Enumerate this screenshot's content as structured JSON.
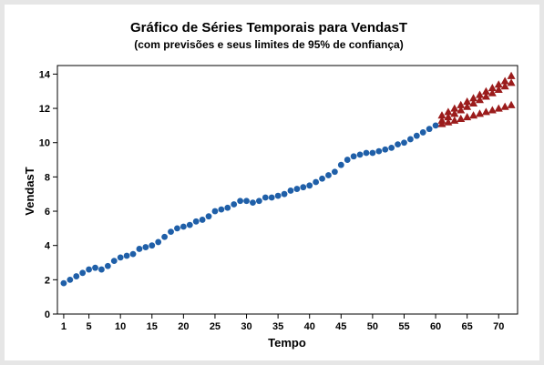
{
  "chart_data": {
    "type": "scatter",
    "title": "Gráfico de Séries Temporais para VendasT",
    "subtitle": "(com previsões e seus limites de 95% de confiança)",
    "xlabel": "Tempo",
    "ylabel": "VendasT",
    "xlim": [
      0,
      73
    ],
    "ylim": [
      0,
      14.5
    ],
    "x_ticks": [
      1,
      5,
      10,
      15,
      20,
      25,
      30,
      35,
      40,
      45,
      50,
      55,
      60,
      65,
      70
    ],
    "y_ticks": [
      0,
      2,
      4,
      6,
      8,
      10,
      12,
      14
    ],
    "grid": false,
    "legend": "none",
    "colors": {
      "observed": "#1f5fa8",
      "forecast": "#9b1c1c"
    },
    "series": [
      {
        "marker": "circle",
        "x": [
          1,
          2,
          3,
          4,
          5,
          6,
          7,
          8,
          9,
          10,
          11,
          12,
          13,
          14,
          15,
          16,
          17,
          18,
          19,
          20,
          21,
          22,
          23,
          24,
          25,
          26,
          27,
          28,
          29,
          30,
          31,
          32,
          33,
          34,
          35,
          36,
          37,
          38,
          39,
          40,
          41,
          42,
          43,
          44,
          45,
          46,
          47,
          48,
          49,
          50,
          51,
          52,
          53,
          54,
          55,
          56,
          57,
          58,
          59,
          60
        ],
        "values": [
          1.8,
          2.0,
          2.2,
          2.4,
          2.6,
          2.7,
          2.6,
          2.8,
          3.1,
          3.3,
          3.4,
          3.5,
          3.8,
          3.9,
          4.0,
          4.2,
          4.5,
          4.8,
          5.0,
          5.1,
          5.2,
          5.4,
          5.5,
          5.7,
          6.0,
          6.1,
          6.2,
          6.4,
          6.6,
          6.6,
          6.5,
          6.6,
          6.8,
          6.8,
          6.9,
          7.0,
          7.2,
          7.3,
          7.4,
          7.5,
          7.7,
          7.9,
          8.1,
          8.3,
          8.7,
          9.0,
          9.2,
          9.3,
          9.4,
          9.4,
          9.5,
          9.6,
          9.7,
          9.9,
          10.0,
          10.2,
          10.4,
          10.6,
          10.8,
          11.0
        ]
      },
      {
        "marker": "triangle",
        "x": [
          61,
          62,
          63,
          64,
          65,
          66,
          67,
          68,
          69,
          70,
          71,
          72
        ],
        "values": [
          11.3,
          11.5,
          11.7,
          11.9,
          12.1,
          12.3,
          12.5,
          12.7,
          12.9,
          13.1,
          13.3,
          13.5
        ]
      },
      {
        "marker": "triangle",
        "x": [
          61,
          62,
          63,
          64,
          65,
          66,
          67,
          68,
          69,
          70,
          71,
          72
        ],
        "values": [
          11.6,
          11.8,
          12.0,
          12.2,
          12.4,
          12.6,
          12.8,
          13.0,
          13.2,
          13.4,
          13.6,
          13.9
        ]
      },
      {
        "marker": "triangle",
        "x": [
          61,
          62,
          63,
          64,
          65,
          66,
          67,
          68,
          69,
          70,
          71,
          72
        ],
        "values": [
          11.1,
          11.2,
          11.3,
          11.4,
          11.5,
          11.6,
          11.7,
          11.8,
          11.9,
          12.0,
          12.1,
          12.2
        ]
      }
    ]
  }
}
